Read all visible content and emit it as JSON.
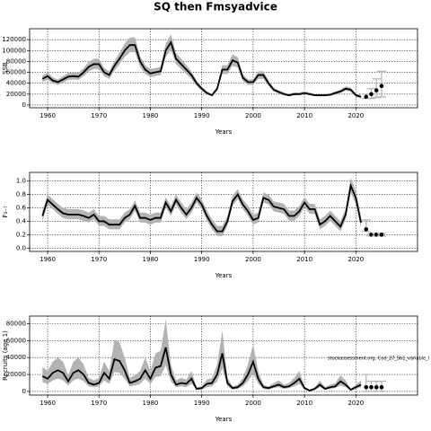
{
  "title": "SQ then Fmsyadvice",
  "chart_data": [
    {
      "type": "line",
      "ylabel": "SSB",
      "xlabel": "Years",
      "xlim": [
        1956.5,
        2032
      ],
      "xticks": [
        1960,
        1970,
        1980,
        1990,
        2000,
        2010,
        2020
      ],
      "ylim": [
        -5000,
        140000
      ],
      "yticks": [
        0,
        20000,
        40000,
        60000,
        80000,
        100000,
        120000
      ],
      "grid": true,
      "color": "#000000",
      "band_color": "#b3b3b3",
      "x": [
        1959,
        1960,
        1961,
        1962,
        1963,
        1964,
        1965,
        1966,
        1967,
        1968,
        1969,
        1970,
        1971,
        1972,
        1973,
        1974,
        1975,
        1976,
        1977,
        1978,
        1979,
        1980,
        1981,
        1982,
        1983,
        1984,
        1985,
        1986,
        1987,
        1988,
        1989,
        1990,
        1991,
        1992,
        1993,
        1994,
        1995,
        1996,
        1997,
        1998,
        1999,
        2000,
        2001,
        2002,
        2003,
        2004,
        2005,
        2006,
        2007,
        2008,
        2009,
        2010,
        2011,
        2012,
        2013,
        2014,
        2015,
        2016,
        2017,
        2018,
        2019,
        2020,
        2021
      ],
      "values": [
        48000,
        53000,
        45000,
        42000,
        47000,
        52000,
        53000,
        52000,
        60000,
        70000,
        75000,
        75000,
        60000,
        55000,
        72000,
        85000,
        100000,
        110000,
        110000,
        80000,
        65000,
        58000,
        60000,
        62000,
        100000,
        115000,
        85000,
        75000,
        65000,
        55000,
        40000,
        30000,
        22000,
        18000,
        30000,
        65000,
        65000,
        82000,
        78000,
        50000,
        42000,
        42000,
        55000,
        55000,
        40000,
        28000,
        24000,
        20000,
        18000,
        20000,
        20000,
        22000,
        20000,
        18000,
        18000,
        18000,
        19000,
        22000,
        25000,
        30000,
        28000,
        18000,
        15000
      ],
      "upper": [
        54000,
        60000,
        51000,
        47000,
        53000,
        59000,
        60000,
        59000,
        68000,
        79000,
        85000,
        85000,
        68000,
        62000,
        81000,
        96000,
        113000,
        124000,
        124000,
        90000,
        73000,
        66000,
        68000,
        70000,
        113000,
        130000,
        96000,
        85000,
        73000,
        62000,
        45000,
        34000,
        25000,
        20000,
        34000,
        73000,
        73000,
        93000,
        88000,
        57000,
        47000,
        47000,
        62000,
        62000,
        45000,
        32000,
        27000,
        23000,
        20000,
        23000,
        23000,
        25000,
        23000,
        20000,
        20000,
        20000,
        21000,
        25000,
        28000,
        34000,
        32000,
        21000,
        19000
      ],
      "lower": [
        42000,
        47000,
        40000,
        37000,
        41000,
        46000,
        47000,
        46000,
        53000,
        62000,
        66000,
        66000,
        53000,
        48000,
        63000,
        75000,
        88000,
        97000,
        97000,
        70000,
        57000,
        51000,
        53000,
        55000,
        88000,
        101000,
        75000,
        66000,
        57000,
        48000,
        35000,
        26000,
        19000,
        16000,
        26000,
        57000,
        57000,
        72000,
        69000,
        44000,
        37000,
        37000,
        48000,
        48000,
        35000,
        25000,
        21000,
        18000,
        16000,
        18000,
        18000,
        19000,
        18000,
        16000,
        16000,
        16000,
        17000,
        19000,
        22000,
        26000,
        25000,
        16000,
        12000
      ],
      "projection": {
        "x": [
          2022,
          2023,
          2024,
          2025
        ],
        "values": [
          15000,
          20000,
          27000,
          35000
        ],
        "lower": [
          12000,
          12000,
          14000,
          15000
        ],
        "upper": [
          20000,
          30000,
          48000,
          62000
        ]
      }
    },
    {
      "type": "line",
      "ylabel": "F₃₋₇",
      "xlabel": "Years",
      "xlim": [
        1956.5,
        2032
      ],
      "xticks": [
        1960,
        1970,
        1980,
        1990,
        2000,
        2010,
        2020
      ],
      "ylim": [
        -0.05,
        1.13
      ],
      "yticks": [
        {
          "value": 0,
          "label": "0.0"
        },
        0.2,
        0.4,
        0.6,
        0.8,
        {
          "value": 1,
          "label": "1.0"
        }
      ],
      "grid": true,
      "color": "#000000",
      "band_color": "#b3b3b3",
      "x": [
        1959,
        1960,
        1961,
        1962,
        1963,
        1964,
        1965,
        1966,
        1967,
        1968,
        1969,
        1970,
        1971,
        1972,
        1973,
        1974,
        1975,
        1976,
        1977,
        1978,
        1979,
        1980,
        1981,
        1982,
        1983,
        1984,
        1985,
        1986,
        1987,
        1988,
        1989,
        1990,
        1991,
        1992,
        1993,
        1994,
        1995,
        1996,
        1997,
        1998,
        1999,
        2000,
        2001,
        2002,
        2003,
        2004,
        2005,
        2006,
        2007,
        2008,
        2009,
        2010,
        2011,
        2012,
        2013,
        2014,
        2015,
        2016,
        2017,
        2018,
        2019,
        2020,
        2021
      ],
      "values": [
        0.48,
        0.72,
        0.65,
        0.58,
        0.52,
        0.5,
        0.5,
        0.5,
        0.48,
        0.45,
        0.5,
        0.4,
        0.4,
        0.35,
        0.35,
        0.35,
        0.45,
        0.5,
        0.63,
        0.45,
        0.45,
        0.42,
        0.45,
        0.45,
        0.68,
        0.55,
        0.72,
        0.6,
        0.5,
        0.6,
        0.75,
        0.65,
        0.48,
        0.35,
        0.25,
        0.25,
        0.4,
        0.7,
        0.8,
        0.65,
        0.55,
        0.42,
        0.45,
        0.75,
        0.72,
        0.62,
        0.6,
        0.58,
        0.48,
        0.48,
        0.55,
        0.68,
        0.58,
        0.58,
        0.35,
        0.4,
        0.48,
        0.4,
        0.32,
        0.5,
        0.93,
        0.75,
        0.38
      ],
      "upper": [
        0.56,
        0.8,
        0.73,
        0.66,
        0.6,
        0.58,
        0.58,
        0.58,
        0.56,
        0.53,
        0.58,
        0.48,
        0.48,
        0.43,
        0.43,
        0.43,
        0.53,
        0.58,
        0.71,
        0.53,
        0.53,
        0.5,
        0.53,
        0.53,
        0.76,
        0.63,
        0.8,
        0.68,
        0.58,
        0.68,
        0.83,
        0.73,
        0.56,
        0.43,
        0.33,
        0.33,
        0.48,
        0.78,
        0.88,
        0.73,
        0.63,
        0.5,
        0.53,
        0.83,
        0.8,
        0.7,
        0.68,
        0.66,
        0.56,
        0.56,
        0.63,
        0.76,
        0.66,
        0.66,
        0.43,
        0.48,
        0.56,
        0.48,
        0.4,
        0.58,
        1.05,
        0.85,
        0.46
      ],
      "lower": [
        0.41,
        0.65,
        0.58,
        0.51,
        0.45,
        0.43,
        0.43,
        0.43,
        0.41,
        0.38,
        0.43,
        0.33,
        0.33,
        0.28,
        0.28,
        0.28,
        0.38,
        0.43,
        0.56,
        0.38,
        0.38,
        0.35,
        0.38,
        0.38,
        0.61,
        0.48,
        0.65,
        0.53,
        0.43,
        0.53,
        0.68,
        0.58,
        0.41,
        0.28,
        0.18,
        0.18,
        0.33,
        0.63,
        0.73,
        0.58,
        0.48,
        0.35,
        0.38,
        0.68,
        0.65,
        0.55,
        0.53,
        0.51,
        0.41,
        0.41,
        0.48,
        0.61,
        0.51,
        0.51,
        0.28,
        0.33,
        0.41,
        0.33,
        0.25,
        0.43,
        0.83,
        0.65,
        0.3
      ],
      "projection": {
        "x": [
          2022,
          2023,
          2024,
          2025
        ],
        "values": [
          0.28,
          0.2,
          0.2,
          0.2
        ],
        "lower": [
          0.25,
          0.18,
          0.18,
          0.18
        ],
        "upper": [
          0.42,
          0.22,
          0.22,
          0.22
        ]
      }
    },
    {
      "type": "line",
      "ylabel": "Recruits (age 1)",
      "xlabel": "Years",
      "annotation": "stockassessment.org, Cod_27_5b1_variable_l",
      "xlim": [
        1956.5,
        2032
      ],
      "xticks": [
        1960,
        1970,
        1980,
        1990,
        2000,
        2010,
        2020
      ],
      "ylim": [
        -4300,
        89000
      ],
      "yticks": [
        0,
        20000,
        40000,
        60000,
        80000
      ],
      "grid": true,
      "color": "#000000",
      "band_color": "#b3b3b3",
      "x": [
        1959,
        1960,
        1961,
        1962,
        1963,
        1964,
        1965,
        1966,
        1967,
        1968,
        1969,
        1970,
        1971,
        1972,
        1973,
        1974,
        1975,
        1976,
        1977,
        1978,
        1979,
        1980,
        1981,
        1982,
        1983,
        1984,
        1985,
        1986,
        1987,
        1988,
        1989,
        1990,
        1991,
        1992,
        1993,
        1994,
        1995,
        1996,
        1997,
        1998,
        1999,
        2000,
        2001,
        2002,
        2003,
        2004,
        2005,
        2006,
        2007,
        2008,
        2009,
        2010,
        2011,
        2012,
        2013,
        2014,
        2015,
        2016,
        2017,
        2018,
        2019,
        2020,
        2021
      ],
      "values": [
        18000,
        15000,
        22000,
        25000,
        22000,
        12000,
        22000,
        25000,
        20000,
        10000,
        8000,
        10000,
        22000,
        15000,
        38000,
        36000,
        25000,
        10000,
        12000,
        15000,
        25000,
        15000,
        28000,
        30000,
        52000,
        20000,
        8000,
        10000,
        9000,
        15000,
        3000,
        4000,
        9000,
        10000,
        20000,
        45000,
        10000,
        4000,
        5000,
        10000,
        20000,
        35000,
        15000,
        5000,
        4000,
        6000,
        8000,
        5000,
        6000,
        10000,
        15000,
        4000,
        1000,
        3000,
        8000,
        3000,
        5000,
        6000,
        12000,
        8000,
        2000,
        5000,
        8000
      ],
      "upper": [
        29000,
        24000,
        35000,
        40000,
        35000,
        19000,
        35000,
        40000,
        32000,
        16000,
        13000,
        16000,
        35000,
        24000,
        61000,
        58000,
        40000,
        16000,
        19000,
        24000,
        40000,
        24000,
        45000,
        48000,
        85000,
        32000,
        13000,
        16000,
        14000,
        24000,
        5000,
        6000,
        14000,
        16000,
        32000,
        72000,
        16000,
        6000,
        8000,
        16000,
        32000,
        56000,
        24000,
        8000,
        6000,
        10000,
        13000,
        8000,
        10000,
        16000,
        24000,
        6000,
        2000,
        5000,
        13000,
        5000,
        8000,
        10000,
        19000,
        13000,
        3000,
        8000,
        13000
      ],
      "lower": [
        11000,
        9000,
        13000,
        15000,
        13000,
        7000,
        13000,
        15000,
        12000,
        6000,
        5000,
        6000,
        13000,
        9000,
        23000,
        22000,
        15000,
        6000,
        7000,
        9000,
        15000,
        9000,
        17000,
        18000,
        31000,
        12000,
        5000,
        6000,
        5000,
        9000,
        2000,
        2000,
        5000,
        6000,
        12000,
        27000,
        6000,
        2000,
        3000,
        6000,
        12000,
        21000,
        9000,
        3000,
        2000,
        4000,
        5000,
        3000,
        4000,
        6000,
        9000,
        2000,
        1000,
        2000,
        5000,
        2000,
        3000,
        4000,
        7000,
        5000,
        1000,
        3000,
        5000
      ],
      "projection": {
        "x": [
          2022,
          2023,
          2024,
          2025
        ],
        "values": [
          5000,
          5000,
          5000,
          5000
        ],
        "lower": [
          0,
          0,
          0,
          0
        ],
        "upper": [
          20000,
          12000,
          12000,
          12000
        ]
      }
    }
  ]
}
